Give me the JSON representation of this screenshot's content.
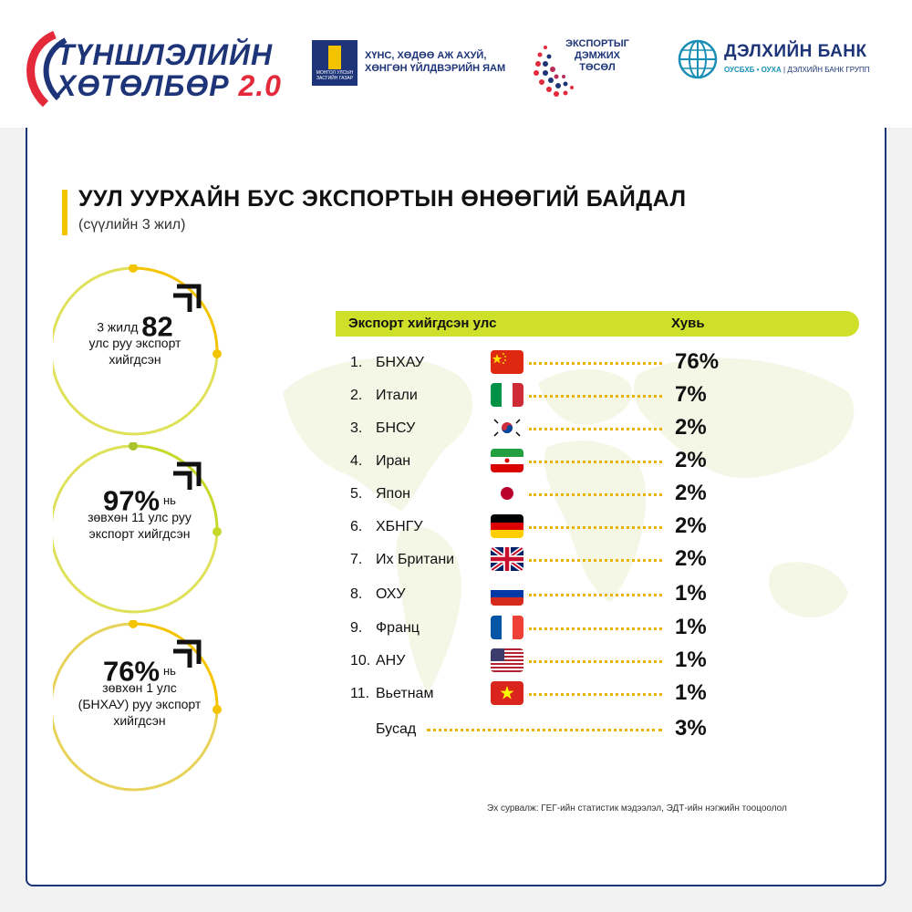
{
  "header": {
    "logo_main": {
      "line1": "ТҮНШЛЭЛИЙН",
      "line2": "ХӨТӨЛБӨР",
      "version": "2.0"
    },
    "ministry": {
      "emblem_text": "МОНГОЛ УЛСЫН ЗАСГИЙН ГАЗАР",
      "name_line1": "ХҮНС, ХӨДӨӨ АЖ АХУЙ,",
      "name_line2": "ХӨНГӨН ҮЙЛДВЭРИЙН ЯАМ"
    },
    "export_project": {
      "line1": "ЭКСПОРТЫГ",
      "line2": "ДЭМЖИХ",
      "line3": "ТӨСӨЛ"
    },
    "world_bank": {
      "name": "ДЭЛХИЙН БАНК",
      "sub_left": "ОУСБХБ • ОУХА",
      "sub_right": "ДЭЛХИЙН БАНК ГРУПП"
    }
  },
  "title": "УУЛ УУРХАЙН БУС ЭКСПОРТЫН ӨНӨӨГИЙ БАЙДАЛ",
  "subtitle": "(сүүлийн 3 жил)",
  "stats": [
    {
      "pre": "3 жилд",
      "big": "82",
      "line2": "улс руу экспорт",
      "line3": "хийгдсэн"
    },
    {
      "big": "97%",
      "suffix": "нь",
      "line2": "зөвхөн 11 улс руу",
      "line3": "экспорт хийгдсэн"
    },
    {
      "big": "76%",
      "suffix": "нь",
      "line2": "зөвхөн 1 улс",
      "line3": "(БНХАУ) руу экспорт",
      "line4": "хийгдсэн"
    }
  ],
  "table": {
    "header_country": "Экспорт хийгдсэн улс",
    "header_share": "Хувь",
    "rows": [
      {
        "no": "1.",
        "country": "БНХАУ",
        "share": "76%",
        "flag": "china-flag"
      },
      {
        "no": "2.",
        "country": "Итали",
        "share": "7%",
        "flag": "italy-flag"
      },
      {
        "no": "3.",
        "country": "БНСУ",
        "share": "2%",
        "flag": "korea-flag"
      },
      {
        "no": "4.",
        "country": "Иран",
        "share": "2%",
        "flag": "iran-flag"
      },
      {
        "no": "5.",
        "country": "Япон",
        "share": "2%",
        "flag": "japan-flag"
      },
      {
        "no": "6.",
        "country": "ХБНГУ",
        "share": "2%",
        "flag": "germany-flag"
      },
      {
        "no": "7.",
        "country": "Их Британи",
        "share": "2%",
        "flag": "uk-flag"
      },
      {
        "no": "8.",
        "country": "ОХУ",
        "share": "1%",
        "flag": "russia-flag"
      },
      {
        "no": "9.",
        "country": "Франц",
        "share": "1%",
        "flag": "france-flag"
      },
      {
        "no": "10.",
        "country": "АНУ",
        "share": "1%",
        "flag": "usa-flag"
      },
      {
        "no": "11.",
        "country": "Вьетнам",
        "share": "1%",
        "flag": "vietnam-flag"
      }
    ],
    "other": {
      "country": "Бусад",
      "share": "3%"
    }
  },
  "source": "Эх сурвалж: ГЕГ-ийн статистик мэдээлэл, ЭДТ-ийн нэгжийн тооцоолол",
  "colors": {
    "accent_yellow": "#f5c400",
    "accent_lime": "#cfe02b",
    "brand_blue": "#1d3478",
    "brand_red": "#e4293a"
  }
}
